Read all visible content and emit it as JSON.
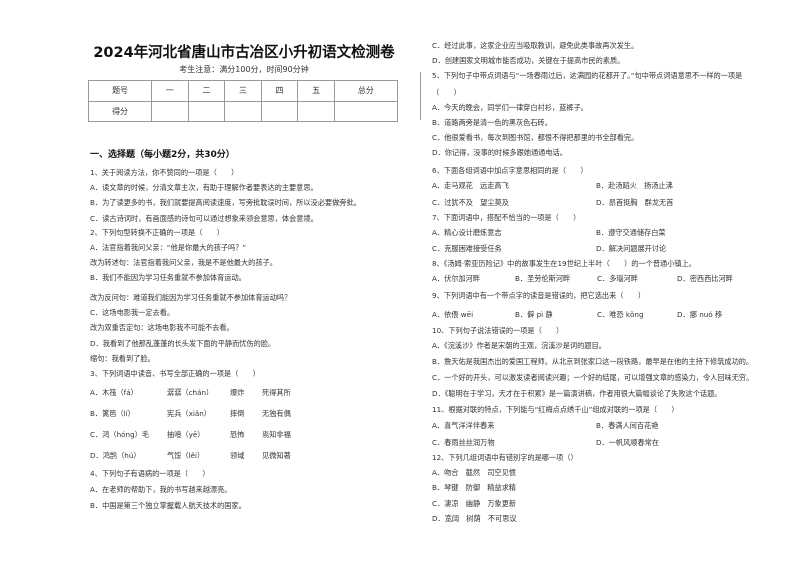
{
  "header": {
    "title": "2024年河北省唐山市古冶区小升初语文检测卷",
    "subtitle": "考生注意：满分100分，时间90分钟"
  },
  "score_table": {
    "headers": [
      "题号",
      "一",
      "二",
      "三",
      "四",
      "五",
      "总分"
    ],
    "row_label": "得分"
  },
  "section_heading": "一、选择题（每小题2分，共30分）",
  "left_lines": [
    [
      "1、关于阅读方法，你不赞同的一项是（　　）"
    ],
    [
      "A．读文章的时候，分清文章主次，有助于理解作者要表达的主要意思。"
    ],
    [
      "B．为了读更多的书，我们就要提高阅读速度，写旁批耽误时间，所以没必要做旁批。"
    ],
    [
      "C．读古诗词时，有画面感的诗句可以通过想象来领会意思，体会意境。"
    ],
    [
      "2、下列句型转换不正确的一项是（　　）"
    ],
    [
      "A．法官指着我问父亲：“他是你最大的孩子吗？”"
    ],
    [
      "改为转述句：法官指着我问父亲，我是不是他最大的孩子。"
    ],
    [
      "B．我们不能因为学习任务重就不参加体育运动。"
    ],
    [
      "改为反问句：难道我们能因为学习任务重就不参加体育运动吗？"
    ],
    [
      "C．这场电影我一定去看。"
    ],
    [
      "改为双重否定句：这场电影我不可能不去看。"
    ],
    [
      "D．我看到了他那乱蓬蓬的长头发下面的平静而忧伤的脸。"
    ],
    [
      "缩句：我看到了脸。"
    ],
    [
      "3、下列词语中读音、书写全部正确的一项是（　　）"
    ],
    [
      "A．木筏（fá）",
      "潺潺（chán）",
      "爆炸",
      "死得其所"
    ],
    [
      "B．篱笆（lí）",
      "宪兵（xiǎn）",
      "摔倒",
      "无独有偶"
    ],
    [
      "C．鸿（hóng）毛",
      "抽噎（yē）",
      "恐怖",
      "焉知非福"
    ],
    [
      "D．鸿鹄（hú）",
      "气馁（lěi）",
      "领域",
      "见微知著"
    ],
    [
      "4、下列句子有语病的一项是（　　）"
    ],
    [
      "A．在老师的帮助下，我的书写越来越漂亮。"
    ],
    [
      "B．中国是第三个独立掌握载人航天技术的国家。"
    ]
  ],
  "right_lines": [
    [
      "C．经过此事，这家企业应当吸取教训，避免此类事故再次发生。"
    ],
    [
      "D．创建国家文明城市能否成功，关键在于提高市民的素质。"
    ],
    [
      "5、下列句子中带点词语与“一场春雨过后，这满园的花都开了。”句中带点词语意思不一样的一项是"
    ],
    [
      "（　　）"
    ],
    [
      "A．今天的晚会，同学们一律穿白衬衫，蓝裤子。"
    ],
    [
      "B．道路两旁是清一色的黑灰色石砖。"
    ],
    [
      "C．他很爱看书，每次到图书馆，都恨不得把那里的书全部看完。"
    ],
    [
      "D．你记得，没事的时候多跟她通通电话。"
    ],
    [
      "6、下面各组词语中加点字意思相同的是（　　）"
    ],
    [
      "A．走马观花　远走高飞",
      "B．赴汤蹈火　扬汤止沸"
    ],
    [
      "C．过犹不及　望尘莫及",
      "D．昂首挺胸　群龙无首"
    ],
    [
      "7、下面词语中，搭配不恰当的一项是（　　）"
    ],
    [
      "A．精心设计磨炼意志",
      "B．遵守交通储存白菜"
    ],
    [
      "C．克服困难接受任务",
      "D．解决问题展开讨论"
    ],
    [
      "8、《汤姆·索亚历险记》中的故事发生在19世纪上半叶（　　）的一个普通小镇上。"
    ],
    [
      "A．伏尔加河畔",
      "B．圣劳伦斯河畔",
      "C．多瑙河畔",
      "D．密西西比河畔"
    ],
    [
      "9、下列词语中有一个带点字的读音是错误的，把它选出来（　　）"
    ],
    [
      "A．依偎 wēi",
      "B．僻 pì 静",
      "C．唯恐 kǒng",
      "D．挪 nuó 移"
    ],
    [
      "10、下列句子说法错误的一项是（　　）"
    ],
    [
      "A．《浣溪沙》作者是宋朝的王观，浣溪沙是词的题目。"
    ],
    [
      "B．詹天佑是我国杰出的爱国工程师。从北京到张家口这一段铁路，最早是在他的主持下修筑成功的。"
    ],
    [
      "C．一个好的开头，可以激发读者阅读兴趣；一个好的结尾，可以增强文章的感染力，令人回味无穷。"
    ],
    [
      "D．《聪明在于学习，天才在于积累》是一篇演讲稿，作者用很大篇幅谈论了失败这个话题。"
    ],
    [
      "11、根据对联的特点，下列能与“红梅点点绣千山”组成对联的一项是（　　）"
    ],
    [
      "A．喜气洋洋伴春来",
      "B．春满人间百花艳"
    ],
    [
      "C．春雨丝丝润万物",
      "D．一帆风顺春常在"
    ],
    [
      "12、下列几组词语中有错别字的是哪一项（）"
    ],
    [
      "A．吻合　截然　司空见惯"
    ],
    [
      "B．琴键　防御　精益求精"
    ],
    [
      "C．凄凉　幽静　万象更新"
    ],
    [
      "D．宽阔　树荫　不可思议"
    ]
  ]
}
